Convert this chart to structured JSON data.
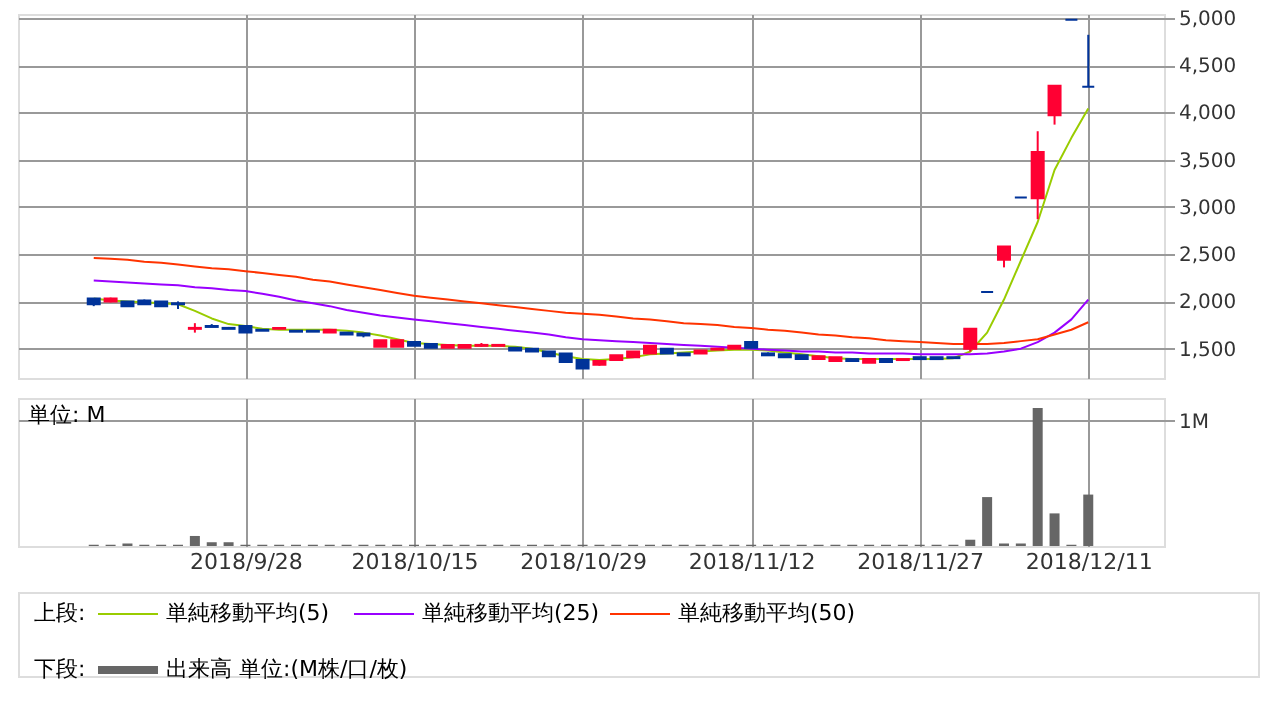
{
  "chart_data": [
    {
      "type": "candlestick",
      "categories": [
        null,
        null,
        null,
        null,
        null,
        null,
        null,
        null,
        null,
        "2018/9/28",
        null,
        null,
        null,
        null,
        null,
        null,
        null,
        null,
        null,
        "2018/10/15",
        null,
        null,
        null,
        null,
        null,
        null,
        null,
        null,
        null,
        "2018/10/29",
        null,
        null,
        null,
        null,
        null,
        null,
        null,
        null,
        null,
        "2018/11/12",
        null,
        null,
        null,
        null,
        null,
        null,
        null,
        null,
        null,
        "2018/11/27",
        null,
        null,
        null,
        null,
        null,
        null,
        null,
        null,
        null,
        "2018/12/11"
      ],
      "ohlc": [
        [
          2030,
          2030,
          1950,
          1970
        ],
        [
          2000,
          2040,
          1990,
          2030
        ],
        [
          2000,
          2000,
          1950,
          1950
        ],
        [
          2010,
          2020,
          1970,
          1970
        ],
        [
          2000,
          2000,
          1950,
          1950
        ],
        [
          1980,
          2000,
          1920,
          1970
        ],
        [
          1710,
          1770,
          1670,
          1720
        ],
        [
          1740,
          1760,
          1730,
          1730
        ],
        [
          1720,
          1730,
          1710,
          1710
        ],
        [
          1740,
          1740,
          1670,
          1670
        ],
        [
          1700,
          1700,
          1690,
          1690
        ],
        [
          1710,
          1720,
          1710,
          1720
        ],
        [
          1690,
          1690,
          1680,
          1680
        ],
        [
          1690,
          1690,
          1680,
          1680
        ],
        [
          1670,
          1700,
          1670,
          1700
        ],
        [
          1670,
          1670,
          1650,
          1650
        ],
        [
          1660,
          1660,
          1620,
          1640
        ],
        [
          1520,
          1590,
          1520,
          1590
        ],
        [
          1520,
          1590,
          1520,
          1590
        ],
        [
          1570,
          1570,
          1530,
          1530
        ],
        [
          1550,
          1550,
          1510,
          1510
        ],
        [
          1510,
          1540,
          1510,
          1540
        ],
        [
          1510,
          1540,
          1510,
          1540
        ],
        [
          1530,
          1560,
          1520,
          1540
        ],
        [
          1530,
          1540,
          1530,
          1540
        ],
        [
          1510,
          1510,
          1480,
          1480
        ],
        [
          1500,
          1500,
          1470,
          1470
        ],
        [
          1470,
          1470,
          1420,
          1420
        ],
        [
          1450,
          1450,
          1360,
          1360
        ],
        [
          1380,
          1380,
          1290,
          1290
        ],
        [
          1330,
          1370,
          1320,
          1370
        ],
        [
          1380,
          1430,
          1380,
          1430
        ],
        [
          1410,
          1470,
          1410,
          1470
        ],
        [
          1450,
          1530,
          1450,
          1530
        ],
        [
          1500,
          1500,
          1450,
          1450
        ],
        [
          1450,
          1450,
          1430,
          1430
        ],
        [
          1450,
          1480,
          1450,
          1480
        ],
        [
          1490,
          1500,
          1490,
          1500
        ],
        [
          1500,
          1530,
          1500,
          1530
        ],
        [
          1570,
          1570,
          1510,
          1510
        ],
        [
          1450,
          1460,
          1430,
          1430
        ],
        [
          1440,
          1440,
          1410,
          1410
        ],
        [
          1430,
          1430,
          1390,
          1390
        ],
        [
          1390,
          1420,
          1390,
          1420
        ],
        [
          1370,
          1410,
          1370,
          1410
        ],
        [
          1390,
          1390,
          1370,
          1370
        ],
        [
          1350,
          1390,
          1350,
          1390
        ],
        [
          1390,
          1390,
          1360,
          1360
        ],
        [
          1380,
          1390,
          1380,
          1390
        ],
        [
          1410,
          1410,
          1390,
          1390
        ],
        [
          1410,
          1410,
          1390,
          1390
        ],
        [
          1410,
          1410,
          1400,
          1400
        ],
        [
          1500,
          1710,
          1470,
          1710
        ],
        [
          2100,
          2100,
          2100,
          2100
        ],
        [
          2440,
          2580,
          2360,
          2580
        ],
        [
          3100,
          3100,
          3100,
          3100
        ],
        [
          3090,
          3800,
          2870,
          3580
        ],
        [
          3970,
          4280,
          3870,
          4280
        ],
        [
          4980,
          4980,
          4980,
          4980
        ],
        [
          4270,
          4820,
          4270,
          4270
        ]
      ],
      "colors": [
        "#003399",
        "#ff0033",
        "#003399",
        "#003399",
        "#003399",
        "#003399",
        "#ff0033",
        "#003399",
        "#003399",
        "#003399",
        "#003399",
        "#ff0033",
        "#003399",
        "#003399",
        "#ff0033",
        "#003399",
        "#003399",
        "#ff0033",
        "#ff0033",
        "#003399",
        "#003399",
        "#ff0033",
        "#ff0033",
        "#ff0033",
        "#ff0033",
        "#003399",
        "#003399",
        "#003399",
        "#003399",
        "#003399",
        "#ff0033",
        "#ff0033",
        "#ff0033",
        "#ff0033",
        "#003399",
        "#003399",
        "#ff0033",
        "#ff0033",
        "#ff0033",
        "#003399",
        "#003399",
        "#003399",
        "#003399",
        "#ff0033",
        "#ff0033",
        "#003399",
        "#ff0033",
        "#003399",
        "#ff0033",
        "#003399",
        "#003399",
        "#003399",
        "#ff0033",
        "#003399",
        "#ff0033",
        "#003399",
        "#ff0033",
        "#ff0033",
        "#003399",
        "#003399"
      ],
      "series": [
        {
          "name": "単純移動平均(5)",
          "type": "line",
          "color": "#99cc00",
          "values": [
            2030,
            2010,
            2000,
            1990,
            1980,
            1970,
            1900,
            1820,
            1760,
            1740,
            1710,
            1700,
            1700,
            1700,
            1700,
            1690,
            1670,
            1640,
            1600,
            1560,
            1550,
            1540,
            1530,
            1530,
            1530,
            1520,
            1500,
            1460,
            1420,
            1390,
            1380,
            1390,
            1410,
            1440,
            1450,
            1460,
            1470,
            1480,
            1490,
            1490,
            1480,
            1460,
            1440,
            1420,
            1400,
            1390,
            1390,
            1390,
            1390,
            1390,
            1390,
            1400,
            1470,
            1670,
            2020,
            2430,
            2840,
            3390,
            3730,
            4040
          ]
        },
        {
          "name": "単純移動平均(25)",
          "type": "line",
          "color": "#9900ff",
          "values": [
            2220,
            2210,
            2200,
            2190,
            2180,
            2170,
            2150,
            2140,
            2120,
            2110,
            2080,
            2050,
            2010,
            1980,
            1950,
            1910,
            1880,
            1850,
            1830,
            1810,
            1790,
            1770,
            1750,
            1730,
            1710,
            1690,
            1670,
            1650,
            1620,
            1600,
            1590,
            1580,
            1570,
            1560,
            1550,
            1540,
            1530,
            1520,
            1510,
            1500,
            1490,
            1480,
            1470,
            1470,
            1460,
            1460,
            1450,
            1450,
            1450,
            1440,
            1440,
            1440,
            1440,
            1450,
            1470,
            1500,
            1570,
            1670,
            1810,
            2020
          ]
        },
        {
          "name": "単純移動平均(50)",
          "type": "line",
          "color": "#ff3300",
          "values": [
            2460,
            2450,
            2440,
            2420,
            2410,
            2390,
            2370,
            2350,
            2340,
            2320,
            2300,
            2280,
            2260,
            2230,
            2210,
            2180,
            2150,
            2120,
            2090,
            2060,
            2040,
            2020,
            2000,
            1980,
            1960,
            1940,
            1920,
            1900,
            1880,
            1870,
            1860,
            1840,
            1820,
            1810,
            1790,
            1770,
            1760,
            1750,
            1730,
            1720,
            1700,
            1690,
            1670,
            1650,
            1640,
            1620,
            1610,
            1590,
            1580,
            1570,
            1560,
            1550,
            1550,
            1550,
            1560,
            1580,
            1600,
            1650,
            1700,
            1780
          ]
        }
      ],
      "ylim": [
        1190,
        5040
      ],
      "yticks": [
        {
          "value": 1500,
          "label": "1,500"
        },
        {
          "value": 2000,
          "label": "2,000"
        },
        {
          "value": 2500,
          "label": "2,500"
        },
        {
          "value": 3000,
          "label": "3,000"
        },
        {
          "value": 3500,
          "label": "3,500"
        },
        {
          "value": 4000,
          "label": "4,000"
        },
        {
          "value": 4500,
          "label": "4,500"
        },
        {
          "value": 5000,
          "label": "5,000"
        }
      ],
      "grid": true,
      "legend": "bottom",
      "legend_title": "上段:",
      "tick_labels": "y"
    },
    {
      "type": "bar",
      "categories": [
        null,
        null,
        null,
        null,
        null,
        null,
        null,
        null,
        null,
        "2018/9/28",
        null,
        null,
        null,
        null,
        null,
        null,
        null,
        null,
        null,
        "2018/10/15",
        null,
        null,
        null,
        null,
        null,
        null,
        null,
        null,
        null,
        "2018/10/29",
        null,
        null,
        null,
        null,
        null,
        null,
        null,
        null,
        null,
        "2018/11/12",
        null,
        null,
        null,
        null,
        null,
        null,
        null,
        null,
        null,
        "2018/11/27",
        null,
        null,
        null,
        null,
        null,
        null,
        null,
        null,
        null,
        "2018/12/11"
      ],
      "series": [
        {
          "name": "出来高 単位:(M株/口/枚)",
          "color": "#666666",
          "values": [
            0.01,
            0.01,
            0.02,
            0.01,
            0.01,
            0.01,
            0.08,
            0.03,
            0.03,
            0.01,
            0.01,
            0.01,
            0.01,
            0.01,
            0.01,
            0.01,
            0.01,
            0.01,
            0.01,
            0.01,
            0.01,
            0.01,
            0.01,
            0.01,
            0.01,
            0.01,
            0.01,
            0.01,
            0.01,
            0.01,
            0.01,
            0.01,
            0.01,
            0.01,
            0.01,
            0.01,
            0.01,
            0.01,
            0.01,
            0.01,
            0.01,
            0.01,
            0.01,
            0.01,
            0.01,
            0.01,
            0.01,
            0.01,
            0.01,
            0.01,
            0.01,
            0.01,
            0.05,
            0.39,
            0.02,
            0.02,
            1.1,
            0.26,
            0.01,
            0.41
          ]
        }
      ],
      "ylim": [
        0,
        1.18
      ],
      "yticks": [
        {
          "value": 1,
          "label": "1M"
        }
      ],
      "annotations": [
        "単位: M"
      ],
      "grid": true,
      "legend": "bottom",
      "legend_title": "下段:"
    }
  ]
}
